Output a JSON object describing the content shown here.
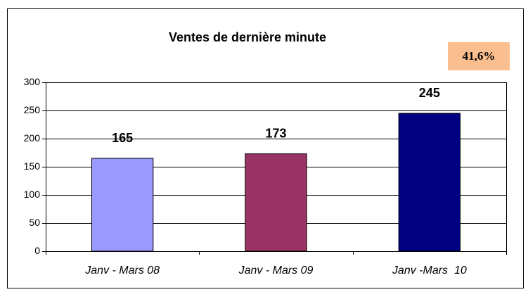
{
  "chart_data": {
    "type": "bar",
    "title": "Ventes de dernière minute",
    "annotation": "41,6%",
    "categories": [
      "Janv - Mars 08",
      "Janv - Mars 09",
      "Janv -Mars  10"
    ],
    "values": [
      165,
      173,
      245
    ],
    "colors": [
      "#9999ff",
      "#993366",
      "#000080"
    ],
    "ylim": [
      0,
      300
    ],
    "yticks": [
      0,
      50,
      100,
      150,
      200,
      250,
      300
    ],
    "grid": true
  }
}
